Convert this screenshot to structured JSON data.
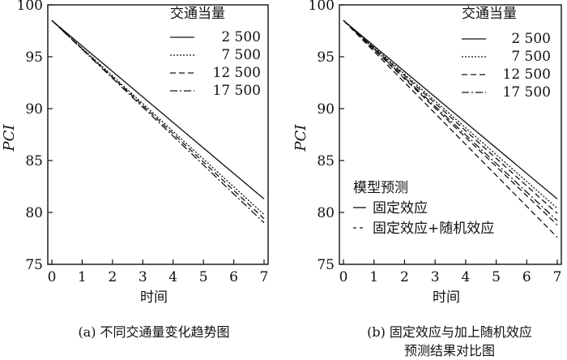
{
  "chart_data": [
    {
      "type": "line",
      "caption": "(a) 不同交通量变化趋势图",
      "xlabel": "时间",
      "ylabel": "PCI",
      "xlim": [
        0,
        7
      ],
      "ylim": [
        75,
        100
      ],
      "xticks": [
        "0",
        "1",
        "2",
        "3",
        "4",
        "5",
        "6",
        "7"
      ],
      "yticks": [
        "75",
        "80",
        "85",
        "90",
        "95",
        "100"
      ],
      "legend": {
        "title": "交通当量",
        "position": "top-right"
      },
      "series": [
        {
          "name": "2 500",
          "style": "solid",
          "x": [
            0,
            7
          ],
          "y": [
            98.5,
            81.3
          ]
        },
        {
          "name": "7 500",
          "style": "dotted",
          "x": [
            0,
            7
          ],
          "y": [
            98.5,
            79.8
          ]
        },
        {
          "name": "12 500",
          "style": "dashed",
          "x": [
            0,
            7
          ],
          "y": [
            98.5,
            79.4
          ]
        },
        {
          "name": "17 500",
          "style": "dashdot",
          "x": [
            0,
            7
          ],
          "y": [
            98.5,
            79.0
          ]
        }
      ]
    },
    {
      "type": "line",
      "caption": [
        "(b) 固定效应与加上随机效应",
        "预测结果对比图"
      ],
      "xlabel": "时间",
      "ylabel": "PCI",
      "xlim": [
        0,
        7
      ],
      "ylim": [
        75,
        100
      ],
      "xticks": [
        "0",
        "1",
        "2",
        "3",
        "4",
        "5",
        "6",
        "7"
      ],
      "yticks": [
        "75",
        "80",
        "85",
        "90",
        "95",
        "100"
      ],
      "legend": {
        "title": "交通当量",
        "position": "top-right"
      },
      "legend2": {
        "title": "模型预测",
        "position": "center-left",
        "items": [
          {
            "label": "固定效应",
            "style": "solid"
          },
          {
            "label": "固定效应+随机效应",
            "style": "dashed"
          }
        ]
      },
      "series": [
        {
          "name": "2 500",
          "style": "solid",
          "x": [
            0,
            7
          ],
          "y": [
            98.5,
            81.3
          ]
        },
        {
          "name": "7 500",
          "style": "dotted",
          "x": [
            0,
            7
          ],
          "y": [
            98.5,
            80.4
          ]
        },
        {
          "name": "12 500",
          "style": "dashed",
          "x": [
            0,
            7
          ],
          "y": [
            98.5,
            79.9
          ]
        },
        {
          "name": "17 500",
          "style": "dashdot",
          "x": [
            0,
            7
          ],
          "y": [
            98.5,
            79.2
          ]
        },
        {
          "name": "",
          "style": "dashed",
          "x": [
            0,
            7
          ],
          "y": [
            98.5,
            78.8
          ]
        },
        {
          "name": "",
          "style": "dashed",
          "x": [
            0,
            7
          ],
          "y": [
            98.5,
            77.6
          ]
        }
      ]
    }
  ]
}
